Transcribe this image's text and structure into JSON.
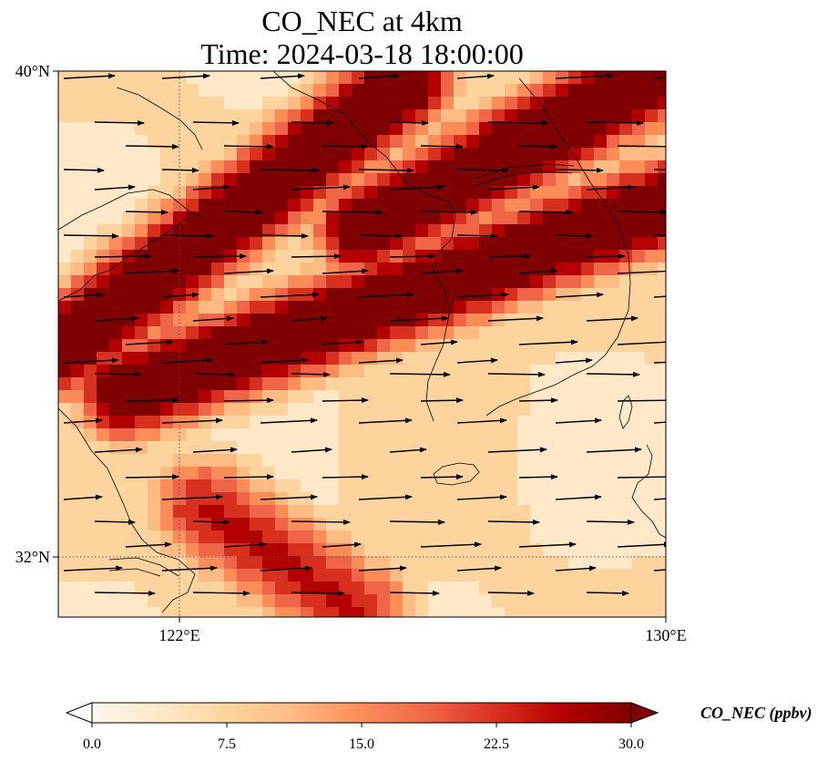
{
  "title": {
    "line1": "CO_NEC at 4km",
    "line2": "Time: 2024-03-18 18:00:00"
  },
  "axes": {
    "lat_ticks": [
      "40°N",
      "32°N"
    ],
    "lon_ticks": [
      "122°E",
      "130°E"
    ],
    "lon_range": [
      120,
      130
    ],
    "lat_range": [
      31,
      40
    ],
    "gridlines": "dotted",
    "gridline_lons": [
      122
    ],
    "gridline_lats": [
      32
    ]
  },
  "colorbar": {
    "label": "CO_NEC (ppbv)",
    "ticks": [
      "0.0",
      "7.5",
      "15.0",
      "22.5",
      "30.0"
    ],
    "vmin": 0,
    "vmax": 30,
    "extend": "both",
    "colormap": "OrRd",
    "colors": [
      "#fff7ec",
      "#fee8c8",
      "#fdd49e",
      "#fdbb84",
      "#fc8d59",
      "#ef6548",
      "#d7301f",
      "#b30000",
      "#7f0000"
    ]
  },
  "chart_data": {
    "type": "heatmap",
    "variable": "CO_NEC",
    "units": "ppbv",
    "level": "4km",
    "time": "2024-03-18 18:00:00",
    "high_concentration_bands": [
      {
        "from_lon": 120.0,
        "from_lat": 35.4,
        "to_lon": 125.7,
        "to_lat": 39.8,
        "value": 30
      },
      {
        "from_lon": 121.1,
        "from_lat": 34.7,
        "to_lon": 130.0,
        "to_lat": 37.8,
        "value": 30
      },
      {
        "from_lon": 125.0,
        "from_lat": 37.4,
        "to_lon": 130.0,
        "to_lat": 40.0,
        "value": 30
      },
      {
        "from_lon": 122.4,
        "from_lat": 32.8,
        "to_lon": 124.9,
        "to_lat": 31.1,
        "value": 20
      }
    ],
    "wind_vectors": "westerly, pointing east (black arrows)"
  }
}
